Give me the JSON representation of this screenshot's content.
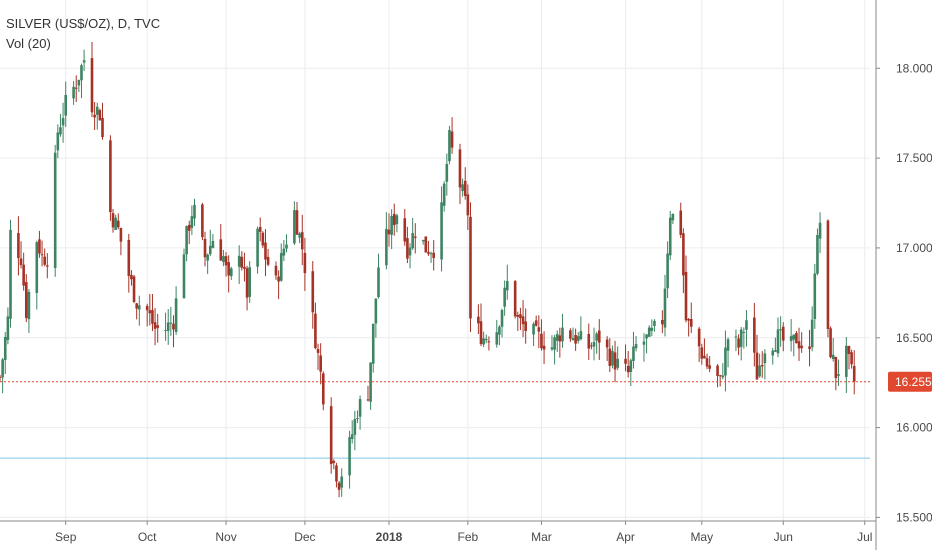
{
  "legend": {
    "title": "SILVER (US$/OZ), D, TVC",
    "indicator": "Vol (20)"
  },
  "colors": {
    "up": "#3e8463",
    "down": "#a53226",
    "grid": "#e9ecef",
    "axis": "#888888",
    "last_price_line": "#e0492f",
    "support_line": "#7fc6e8",
    "price_tag_bg": "#e0492f"
  },
  "chart_data": {
    "type": "candlestick",
    "title": "SILVER (US$/OZ), D, TVC",
    "y_axis": {
      "ticks": [
        "18.000",
        "17.500",
        "17.000",
        "16.500",
        "16.000",
        "15.500"
      ],
      "tick_values": [
        18.0,
        17.5,
        17.0,
        16.5,
        16.0,
        15.5
      ],
      "ylim": [
        15.48,
        18.38
      ]
    },
    "x_axis": {
      "ticks": [
        "Sep",
        "Oct",
        "Nov",
        "Dec",
        "2018",
        "Feb",
        "Mar",
        "Apr",
        "May",
        "Jun",
        "Jul"
      ],
      "bold_ticks": [
        "2018"
      ],
      "tick_dates": [
        "2017-09-01",
        "2017-10-02",
        "2017-11-01",
        "2017-12-01",
        "2018-01-02",
        "2018-02-01",
        "2018-03-01",
        "2018-04-02",
        "2018-05-01",
        "2018-06-01",
        "2018-07-02"
      ],
      "xlim": [
        "2017-08-07",
        "2018-07-04"
      ]
    },
    "last_price": 16.255,
    "last_price_label": "16.255",
    "support_level": 15.83,
    "grid": true,
    "series_points": [
      [
        "2017-08-07",
        16.28
      ],
      [
        "2017-08-10",
        16.6
      ],
      [
        "2017-08-11",
        17.08
      ],
      [
        "2017-08-15",
        16.95
      ],
      [
        "2017-08-17",
        16.65
      ],
      [
        "2017-08-21",
        17.05
      ],
      [
        "2017-08-23",
        16.95
      ],
      [
        "2017-08-25",
        16.95
      ],
      [
        "2017-08-29",
        17.65
      ],
      [
        "2017-09-01",
        17.8
      ],
      [
        "2017-09-05",
        17.92
      ],
      [
        "2017-09-08",
        18.05
      ],
      [
        "2017-09-11",
        17.8
      ],
      [
        "2017-09-14",
        17.75
      ],
      [
        "2017-09-18",
        17.2
      ],
      [
        "2017-09-21",
        17.1
      ],
      [
        "2017-09-25",
        16.85
      ],
      [
        "2017-09-28",
        16.7
      ],
      [
        "2017-10-02",
        16.65
      ],
      [
        "2017-10-05",
        16.55
      ],
      [
        "2017-10-09",
        16.55
      ],
      [
        "2017-10-12",
        16.6
      ],
      [
        "2017-10-16",
        17.0
      ],
      [
        "2017-10-19",
        17.2
      ],
      [
        "2017-10-20",
        17.2
      ],
      [
        "2017-10-24",
        16.95
      ],
      [
        "2017-10-27",
        17.05
      ],
      [
        "2017-10-31",
        16.95
      ],
      [
        "2017-11-02",
        16.8
      ],
      [
        "2017-11-06",
        17.0
      ],
      [
        "2017-11-09",
        16.75
      ],
      [
        "2017-11-13",
        17.1
      ],
      [
        "2017-11-16",
        16.95
      ],
      [
        "2017-11-20",
        16.8
      ],
      [
        "2017-11-23",
        17.0
      ],
      [
        "2017-11-27",
        17.2
      ],
      [
        "2017-11-30",
        17.0
      ],
      [
        "2017-12-04",
        16.6
      ],
      [
        "2017-12-07",
        16.3
      ],
      [
        "2017-12-11",
        15.85
      ],
      [
        "2017-12-14",
        15.7
      ],
      [
        "2017-12-18",
        15.9
      ],
      [
        "2017-12-21",
        16.1
      ],
      [
        "2017-12-25",
        16.2
      ],
      [
        "2017-12-29",
        16.9
      ],
      [
        "2018-01-02",
        17.1
      ],
      [
        "2018-01-05",
        17.2
      ],
      [
        "2018-01-09",
        17.0
      ],
      [
        "2018-01-12",
        17.1
      ],
      [
        "2018-01-16",
        17.0
      ],
      [
        "2018-01-19",
        17.0
      ],
      [
        "2018-01-22",
        17.2
      ],
      [
        "2018-01-25",
        17.6
      ],
      [
        "2018-01-29",
        17.35
      ],
      [
        "2018-02-01",
        17.2
      ],
      [
        "2018-02-02",
        16.6
      ],
      [
        "2018-02-07",
        16.5
      ],
      [
        "2018-02-12",
        16.55
      ],
      [
        "2018-02-16",
        16.8
      ],
      [
        "2018-02-20",
        16.6
      ],
      [
        "2018-02-23",
        16.55
      ],
      [
        "2018-02-28",
        16.5
      ],
      [
        "2018-03-05",
        16.45
      ],
      [
        "2018-03-09",
        16.55
      ],
      [
        "2018-03-14",
        16.5
      ],
      [
        "2018-03-19",
        16.45
      ],
      [
        "2018-03-23",
        16.5
      ],
      [
        "2018-03-27",
        16.4
      ],
      [
        "2018-03-30",
        16.35
      ],
      [
        "2018-04-03",
        16.3
      ],
      [
        "2018-04-06",
        16.45
      ],
      [
        "2018-04-11",
        16.5
      ],
      [
        "2018-04-16",
        16.6
      ],
      [
        "2018-04-19",
        17.2
      ],
      [
        "2018-04-23",
        17.1
      ],
      [
        "2018-04-25",
        16.6
      ],
      [
        "2018-04-30",
        16.45
      ],
      [
        "2018-05-03",
        16.35
      ],
      [
        "2018-05-08",
        16.25
      ],
      [
        "2018-05-11",
        16.5
      ],
      [
        "2018-05-15",
        16.45
      ],
      [
        "2018-05-18",
        16.6
      ],
      [
        "2018-05-22",
        16.3
      ],
      [
        "2018-05-25",
        16.45
      ],
      [
        "2018-05-30",
        16.5
      ],
      [
        "2018-06-04",
        16.45
      ],
      [
        "2018-06-06",
        16.5
      ],
      [
        "2018-06-11",
        16.4
      ],
      [
        "2018-06-13",
        16.9
      ],
      [
        "2018-06-15",
        17.15
      ],
      [
        "2018-06-18",
        16.5
      ],
      [
        "2018-06-21",
        16.3
      ],
      [
        "2018-06-25",
        16.4
      ],
      [
        "2018-06-28",
        16.255
      ]
    ]
  }
}
